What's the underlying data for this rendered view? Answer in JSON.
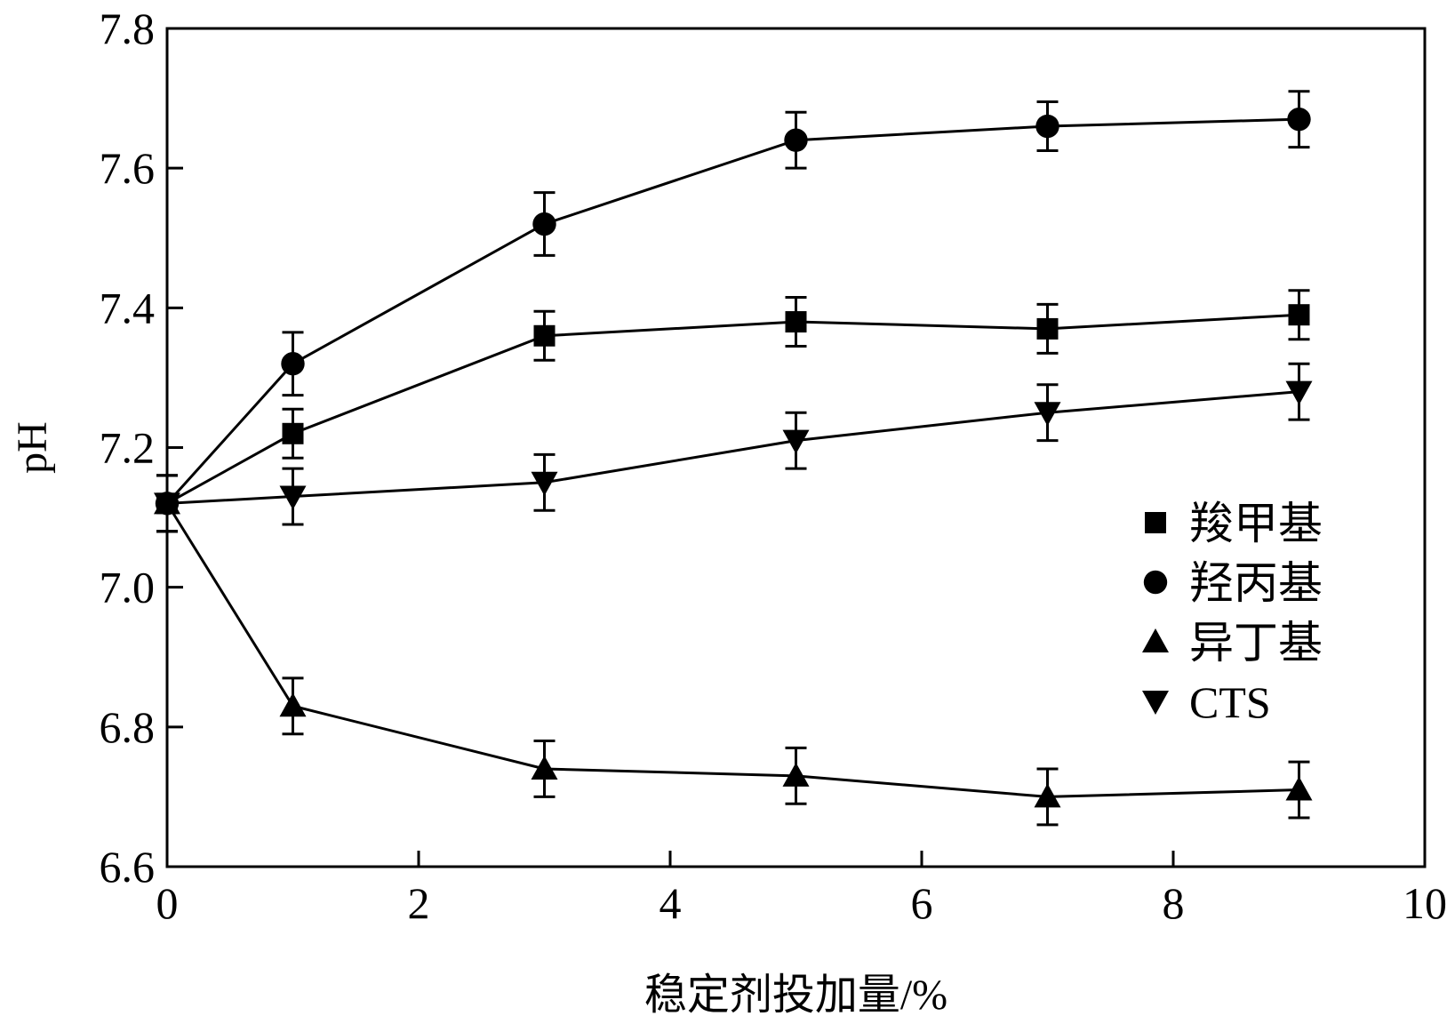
{
  "chart_data": {
    "type": "line",
    "xlabel": "稳定剂投加量/%",
    "ylabel": "pH",
    "xlim": [
      0,
      10
    ],
    "ylim": [
      6.6,
      7.8
    ],
    "xticks": [
      0,
      2,
      4,
      6,
      8,
      10
    ],
    "yticks": [
      6.6,
      6.8,
      7.0,
      7.2,
      7.4,
      7.6,
      7.8
    ],
    "xtick_labels": [
      "0",
      "2",
      "4",
      "6",
      "8",
      "10"
    ],
    "ytick_labels": [
      "6.6",
      "6.8",
      "7.0",
      "7.2",
      "7.4",
      "7.6",
      "7.8"
    ],
    "grid": false,
    "legend_position": "center-right",
    "x": [
      0,
      1,
      3,
      5,
      7,
      9
    ],
    "series": [
      {
        "name": "羧甲基",
        "marker": "square",
        "values": [
          7.12,
          7.22,
          7.36,
          7.38,
          7.37,
          7.39
        ],
        "error": [
          0.04,
          0.035,
          0.035,
          0.035,
          0.035,
          0.035
        ]
      },
      {
        "name": "羟丙基",
        "marker": "circle",
        "values": [
          7.12,
          7.32,
          7.52,
          7.64,
          7.66,
          7.67
        ],
        "error": [
          0.04,
          0.045,
          0.045,
          0.04,
          0.035,
          0.04
        ]
      },
      {
        "name": "异丁基",
        "marker": "triangle-up",
        "values": [
          7.12,
          6.83,
          6.74,
          6.73,
          6.7,
          6.71
        ],
        "error": [
          0.04,
          0.04,
          0.04,
          0.04,
          0.04,
          0.04
        ]
      },
      {
        "name": "CTS",
        "marker": "triangle-down",
        "values": [
          7.12,
          7.13,
          7.15,
          7.21,
          7.25,
          7.28
        ],
        "error": [
          0.04,
          0.04,
          0.04,
          0.04,
          0.04,
          0.04
        ]
      }
    ],
    "colors": {
      "ink": "#000000",
      "background": "#ffffff"
    }
  }
}
